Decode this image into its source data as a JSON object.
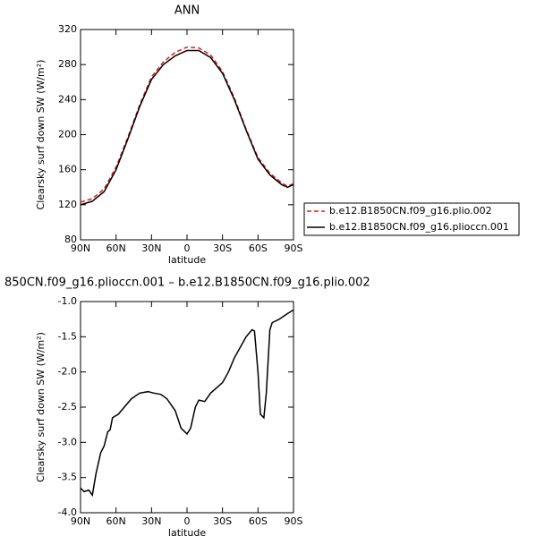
{
  "chart_data": [
    {
      "type": "line",
      "title": "ANN",
      "xlabel": "latitude",
      "ylabel": "Clearsky surf down SW (W/m²)",
      "x": [
        90,
        80,
        70,
        60,
        50,
        40,
        30,
        20,
        10,
        0,
        -10,
        -20,
        -30,
        -40,
        -50,
        -60,
        -70,
        -80,
        -85,
        -90
      ],
      "series": [
        {
          "name": "b.e12.B1850CN.f09_g16.plio.002",
          "color": "#d62020",
          "dash": true,
          "values": [
            123,
            127,
            138,
            163,
            197,
            234,
            266,
            283,
            294,
            300,
            299,
            291,
            272,
            242,
            206,
            174,
            156,
            145,
            141,
            144
          ]
        },
        {
          "name": "b.e12.B1850CN.f09_g16.plioccn.001",
          "color": "#000000",
          "dash": false,
          "values": [
            120,
            124,
            135,
            160,
            195,
            232,
            263,
            280,
            290,
            296,
            296,
            288,
            270,
            240,
            205,
            172,
            154,
            143,
            140,
            143
          ]
        }
      ],
      "xlim": [
        90,
        -90
      ],
      "xticks": [
        {
          "value": 90,
          "label": "90N"
        },
        {
          "value": 60,
          "label": "60N"
        },
        {
          "value": 30,
          "label": "30N"
        },
        0,
        {
          "value": -30,
          "label": "30S"
        },
        {
          "value": -60,
          "label": "60S"
        },
        {
          "value": -90,
          "label": "90S"
        }
      ],
      "ylim": [
        80,
        320
      ],
      "yticks": [
        80,
        120,
        160,
        200,
        240,
        280,
        320
      ],
      "legend": "right"
    },
    {
      "type": "line",
      "title": "850CN.f09_g16.plioccn.001 – b.e12.B1850CN.f09_g16.plio.002",
      "xlabel": "latitude",
      "ylabel": "Clearsky surf down SW (W/m²)",
      "x": [
        90,
        87,
        83,
        80,
        77,
        73,
        70,
        67,
        65,
        63,
        58,
        53,
        47,
        40,
        33,
        28,
        22,
        17,
        10,
        5,
        0,
        -3,
        -7,
        -10,
        -15,
        -20,
        -30,
        -35,
        -40,
        -45,
        -50,
        -55,
        -57,
        -60,
        -62,
        -65,
        -67,
        -70,
        -72,
        -78,
        -85,
        -90
      ],
      "series": [
        {
          "color": "#000000",
          "dash": false,
          "values": [
            -3.65,
            -3.7,
            -3.68,
            -3.75,
            -3.45,
            -3.15,
            -3.05,
            -2.85,
            -2.82,
            -2.65,
            -2.6,
            -2.5,
            -2.38,
            -2.3,
            -2.28,
            -2.3,
            -2.32,
            -2.38,
            -2.55,
            -2.8,
            -2.88,
            -2.8,
            -2.5,
            -2.4,
            -2.42,
            -2.3,
            -2.15,
            -2.0,
            -1.8,
            -1.65,
            -1.5,
            -1.4,
            -1.42,
            -2.0,
            -2.6,
            -2.65,
            -2.3,
            -1.4,
            -1.3,
            -1.25,
            -1.17,
            -1.12
          ]
        }
      ],
      "xlim": [
        90,
        -90
      ],
      "xticks": [
        {
          "value": 90,
          "label": "90N"
        },
        {
          "value": 60,
          "label": "60N"
        },
        {
          "value": 30,
          "label": "30N"
        },
        0,
        {
          "value": -30,
          "label": "30S"
        },
        {
          "value": -60,
          "label": "60S"
        },
        {
          "value": -90,
          "label": "90S"
        }
      ],
      "ylim": [
        -4,
        -1
      ],
      "yticks": [
        {
          "value": -4,
          "label": "-4.0"
        },
        -3.5,
        {
          "value": -3,
          "label": "-3.0"
        },
        -2.5,
        {
          "value": -2,
          "label": "-2.0"
        },
        -1.5,
        {
          "value": -1,
          "label": "-1.0"
        }
      ]
    }
  ]
}
